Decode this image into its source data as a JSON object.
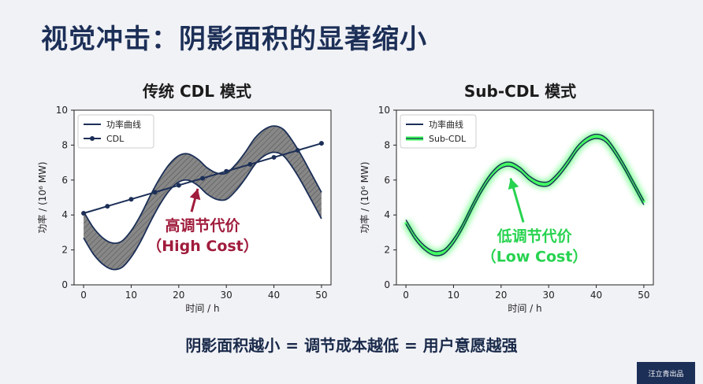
{
  "page": {
    "title": "视觉冲击：阴影面积的显著缩小",
    "caption": "阴影面积越小 = 调节成本越低 = 用户意愿越强",
    "watermark": "汪立青出品"
  },
  "colors": {
    "power_curve": "#1c2f57",
    "cdl": "#1c2f57",
    "shade": "#7a7a7a",
    "high_cost": "#a01c3c",
    "low_cost": "#27d34f",
    "glow": "#39ff5a"
  },
  "chart_data": [
    {
      "type": "line",
      "title": "传统 CDL 模式",
      "xlabel": "时间 / h",
      "ylabel": "功率 / (10⁶ MW)",
      "xlim": [
        -2,
        52
      ],
      "ylim": [
        0,
        10
      ],
      "xticks": [
        0,
        10,
        20,
        30,
        40,
        50
      ],
      "yticks": [
        0,
        2,
        4,
        6,
        8,
        10
      ],
      "legend_position": "top-left",
      "series": [
        {
          "name": "功率曲线",
          "x": [
            0,
            2,
            4,
            6,
            8,
            10,
            12,
            14,
            16,
            18,
            20,
            22,
            24,
            26,
            28,
            30,
            32,
            34,
            36,
            38,
            40,
            42,
            44,
            46,
            48,
            50
          ],
          "values": [
            3.6,
            2.7,
            2.1,
            1.8,
            1.9,
            2.5,
            3.4,
            4.5,
            5.5,
            6.3,
            6.8,
            6.9,
            6.6,
            6.1,
            5.8,
            5.8,
            6.3,
            7.0,
            7.8,
            8.3,
            8.5,
            8.3,
            7.6,
            6.7,
            5.7,
            4.7
          ],
          "band_half_width": 0.35
        },
        {
          "name": "CDL",
          "x": [
            0,
            5,
            10,
            15,
            20,
            25,
            30,
            35,
            40,
            45,
            50
          ],
          "values": [
            4.1,
            4.5,
            4.9,
            5.3,
            5.7,
            6.1,
            6.5,
            6.9,
            7.3,
            7.7,
            8.1
          ]
        }
      ],
      "annotation": {
        "text_line1": "高调节代价",
        "text_line2": "（High Cost）",
        "x": 25,
        "y": 3.1,
        "arrow_to_x": 24,
        "arrow_to_y": 5.5
      }
    },
    {
      "type": "line",
      "title": "Sub-CDL 模式",
      "xlabel": "时间 / h",
      "ylabel": "功率 / (10⁶ MW)",
      "xlim": [
        -2,
        52
      ],
      "ylim": [
        0,
        10
      ],
      "xticks": [
        0,
        10,
        20,
        30,
        40,
        50
      ],
      "yticks": [
        0,
        2,
        4,
        6,
        8,
        10
      ],
      "legend_position": "top-left",
      "series": [
        {
          "name": "功率曲线",
          "x": [
            0,
            2,
            4,
            6,
            8,
            10,
            12,
            14,
            16,
            18,
            20,
            22,
            24,
            26,
            28,
            30,
            32,
            34,
            36,
            38,
            40,
            42,
            44,
            46,
            48,
            50
          ],
          "values": [
            3.6,
            2.7,
            2.1,
            1.8,
            1.9,
            2.5,
            3.4,
            4.5,
            5.5,
            6.3,
            6.8,
            6.9,
            6.6,
            6.1,
            5.8,
            5.8,
            6.3,
            7.0,
            7.8,
            8.3,
            8.5,
            8.3,
            7.6,
            6.7,
            5.7,
            4.7
          ],
          "band_half_width": 0.12
        },
        {
          "name": "Sub-CDL",
          "x": [
            0,
            2,
            4,
            6,
            8,
            10,
            12,
            14,
            16,
            18,
            20,
            22,
            24,
            26,
            28,
            30,
            32,
            34,
            36,
            38,
            40,
            42,
            44,
            46,
            48,
            50
          ],
          "values": [
            3.6,
            2.7,
            2.1,
            1.8,
            1.9,
            2.5,
            3.4,
            4.5,
            5.5,
            6.3,
            6.8,
            6.9,
            6.6,
            6.1,
            5.8,
            5.8,
            6.3,
            7.0,
            7.8,
            8.3,
            8.5,
            8.3,
            7.6,
            6.7,
            5.7,
            4.7
          ]
        }
      ],
      "annotation": {
        "text_line1": "低调节代价",
        "text_line2": "（Low Cost）",
        "x": 27,
        "y": 2.5,
        "arrow_to_x": 22,
        "arrow_to_y": 6.1
      }
    }
  ]
}
